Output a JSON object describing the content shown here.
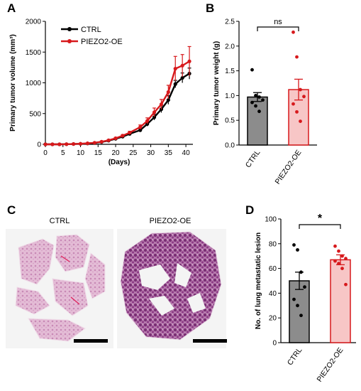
{
  "panels": {
    "A": "A",
    "B": "B",
    "C": "C",
    "D": "D"
  },
  "images": {
    "left_label": "CTRL",
    "right_label": "PIEZO2-OE",
    "colors": {
      "tissue_light": "#d9a9c7",
      "tissue_dark": "#7a2f74",
      "scale_bar": "#000000"
    }
  },
  "colors": {
    "ctrl": "#000000",
    "oe": "#d7191c",
    "ctrl_bar": "#8c8c8c",
    "oe_bar": "#f7c6c6"
  },
  "chart_data": [
    {
      "type": "line",
      "panel": "A",
      "xlabel": "(Days)",
      "ylabel": "Primary tumor volume (mm³)",
      "xlim": [
        0,
        42
      ],
      "ylim": [
        0,
        2000
      ],
      "xticks": [
        0,
        5,
        10,
        15,
        20,
        25,
        30,
        35,
        40
      ],
      "yticks": [
        0,
        500,
        1000,
        1500,
        2000
      ],
      "legend_position": "top-left",
      "x": [
        0,
        2,
        4,
        6,
        8,
        10,
        12,
        14,
        16,
        18,
        20,
        22,
        24,
        27,
        29,
        31,
        33,
        35,
        37,
        39,
        41
      ],
      "series": [
        {
          "name": "CTRL",
          "color": "#000000",
          "values": [
            0,
            0,
            0,
            2,
            5,
            8,
            14,
            22,
            38,
            60,
            90,
            125,
            170,
            230,
            330,
            440,
            570,
            720,
            980,
            1080,
            1150
          ],
          "errors": [
            0,
            0,
            0,
            1,
            2,
            3,
            4,
            5,
            6,
            8,
            10,
            14,
            18,
            25,
            35,
            45,
            55,
            70,
            60,
            80,
            90
          ]
        },
        {
          "name": "PIEZO2-OE",
          "color": "#d7191c",
          "values": [
            0,
            0,
            0,
            2,
            5,
            9,
            16,
            25,
            42,
            66,
            98,
            140,
            190,
            280,
            380,
            520,
            650,
            850,
            1230,
            1280,
            1350
          ],
          "errors": [
            0,
            0,
            0,
            1,
            2,
            3,
            4,
            6,
            8,
            10,
            14,
            18,
            22,
            35,
            50,
            70,
            80,
            110,
            200,
            180,
            240
          ]
        }
      ]
    },
    {
      "type": "bar",
      "panel": "B",
      "ylabel": "Primary tumor weight (g)",
      "ylim": [
        0,
        2.5
      ],
      "yticks": [
        "0.0",
        "0.5",
        "1.0",
        "1.5",
        "2.0",
        "2.5"
      ],
      "categories": [
        "CTRL",
        "PIEZO2-OE"
      ],
      "values": [
        0.97,
        1.12
      ],
      "errors": [
        0.09,
        0.21
      ],
      "points": [
        [
          1.52,
          1.0,
          0.97,
          0.91,
          0.86,
          0.79,
          0.68
        ],
        [
          2.28,
          1.78,
          1.12,
          0.98,
          0.83,
          0.67,
          0.48
        ]
      ],
      "significance": "ns"
    },
    {
      "type": "bar",
      "panel": "D",
      "ylabel": "No. of lung metastatic lesion",
      "ylim": [
        0,
        100
      ],
      "yticks": [
        "0",
        "20",
        "40",
        "60",
        "80",
        "100"
      ],
      "categories": [
        "CTRL",
        "PIEZO2-OE"
      ],
      "values": [
        50,
        67
      ],
      "errors": [
        7,
        4
      ],
      "points": [
        [
          79,
          75,
          57,
          45,
          35,
          30,
          22
        ],
        [
          78,
          74,
          70,
          68,
          66,
          64,
          60,
          47
        ]
      ],
      "significance": "*"
    }
  ]
}
